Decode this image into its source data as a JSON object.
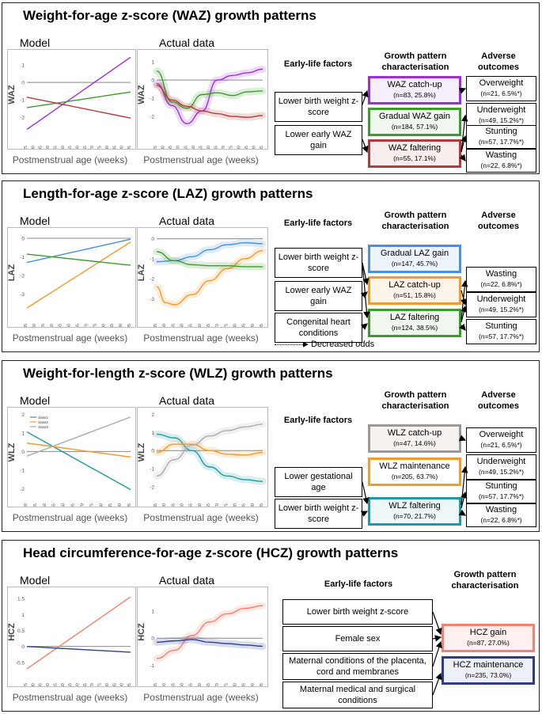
{
  "colors": {
    "purple": "#9b30d9",
    "green": "#3f9a2e",
    "red": "#b33a3a",
    "blue": "#4a8fe0",
    "orange": "#f39a2a",
    "teal": "#1f9aa0",
    "grey": "#999999",
    "navy": "#2c3d8c",
    "salmon": "#f0826e"
  },
  "common": {
    "model": "Model",
    "actual": "Actual data",
    "xlabel": "Postmenstrual age (weeks)",
    "h_early": "Early-life factors",
    "h_growth": "Growth pattern characterisation",
    "h_adverse": "Adverse outcomes",
    "decreased": "Decreased odds"
  },
  "waz": {
    "title": "Weight-for-age z-score (WAZ) growth patterns",
    "ylabel": "WAZ",
    "factors": [
      "Lower birth weight z-score",
      "Lower early WAZ gain"
    ],
    "patterns": [
      {
        "name": "WAZ catch-up",
        "n": "(n=83, 25.8%)"
      },
      {
        "name": "Gradual WAZ gain",
        "n": "(n=184, 57.1%)"
      },
      {
        "name": "WAZ faltering",
        "n": "(n=55, 17.1%)"
      }
    ],
    "outcomes": [
      {
        "name": "Overweight",
        "n": "(n=21, 6.5%*)"
      },
      {
        "name": "Underweight",
        "n": "(n=49, 15.2%*)"
      },
      {
        "name": "Stunting",
        "n": "(n=57, 17.7%*)"
      },
      {
        "name": "Wasting",
        "n": "(n=22, 6.8%*)"
      }
    ]
  },
  "laz": {
    "title": "Length-for-age z-score (LAZ) growth patterns",
    "ylabel": "LAZ",
    "factors": [
      "Lower birth weight z-score",
      "Lower early WAZ gain",
      "Congenital heart conditions"
    ],
    "patterns": [
      {
        "name": "Gradual LAZ gain",
        "n": "(n=147, 45.7%)"
      },
      {
        "name": "LAZ catch-up",
        "n": "(n=51, 15.8%)"
      },
      {
        "name": "LAZ faltering",
        "n": "(n=124, 38.5%)"
      }
    ],
    "outcomes": [
      {
        "name": "Wasting",
        "n": "(n=22, 6.8%*)"
      },
      {
        "name": "Underweight",
        "n": "(n=49, 15.2%*)"
      },
      {
        "name": "Stunting",
        "n": "(n=57, 17.7%*)"
      }
    ]
  },
  "wlz": {
    "title": "Weight-for-length z-score (WLZ) growth patterns",
    "ylabel": "WLZ",
    "legend": [
      "class1",
      "class2",
      "class3"
    ],
    "factors": [
      "Lower gestational age",
      "Lower birth weight z-score"
    ],
    "patterns": [
      {
        "name": "WLZ catch-up",
        "n": "(n=47, 14.6%)"
      },
      {
        "name": "WLZ maintenance",
        "n": "(n=205, 63.7%)"
      },
      {
        "name": "WLZ faltering",
        "n": "(n=70, 21.7%)"
      }
    ],
    "outcomes": [
      {
        "name": "Overweight",
        "n": "(n=21, 6.5%*)"
      },
      {
        "name": "Underweight",
        "n": "(n=49, 15.2%*)"
      },
      {
        "name": "Stunting",
        "n": "(n=57, 17.7%*)"
      },
      {
        "name": "Wasting",
        "n": "(n=22, 6.8%*)"
      }
    ]
  },
  "hcz": {
    "title": "Head circumference-for-age z-score (HCZ) growth patterns",
    "ylabel": "HCZ",
    "factors": [
      "Lower birth weight z-score",
      "Female sex",
      "Maternal conditions of the placenta, cord and membranes",
      "Maternal medical and surgical conditions"
    ],
    "patterns": [
      {
        "name": "HCZ gain",
        "n": "(n=87, 27.0%)"
      },
      {
        "name": "HCZ maintenance",
        "n": "(n=235, 73.0%)"
      }
    ]
  },
  "chart_data": [
    {
      "id": "waz_model",
      "type": "line",
      "title": "Model",
      "xlabel": "Postmenstrual age (weeks)",
      "ylabel": "WAZ",
      "x": [
        25,
        30,
        35,
        40,
        45,
        50,
        55,
        60,
        65,
        70,
        75,
        80,
        85,
        90,
        95
      ],
      "xlim": [
        25,
        95
      ],
      "ylim": [
        -3,
        1.6
      ],
      "yticks": [
        -2,
        -1,
        0,
        1
      ],
      "series": [
        {
          "name": "WAZ catch-up",
          "color": "#9b30d9",
          "x": [
            25,
            95
          ],
          "y": [
            -2.7,
            1.45
          ]
        },
        {
          "name": "Gradual WAZ gain",
          "color": "#3f9a2e",
          "x": [
            25,
            95
          ],
          "y": [
            -1.45,
            -0.55
          ]
        },
        {
          "name": "WAZ faltering",
          "color": "#b33a3a",
          "x": [
            25,
            95
          ],
          "y": [
            -0.85,
            -2.05
          ]
        }
      ]
    },
    {
      "id": "waz_actual",
      "type": "line",
      "title": "Actual data",
      "xlabel": "Postmenstrual age (weeks)",
      "ylabel": "WAZ",
      "x": [
        25,
        30,
        35,
        40,
        45,
        50,
        55,
        60,
        65,
        70,
        75,
        80,
        85,
        90,
        95
      ],
      "xlim": [
        25,
        95
      ],
      "ylim": [
        -3,
        1.4
      ],
      "yticks": [
        -2,
        -1,
        0,
        1
      ],
      "series": [
        {
          "name": "WAZ catch-up",
          "color": "#9b30d9",
          "x": [
            25,
            35,
            45,
            55,
            65,
            75,
            85,
            95
          ],
          "y": [
            -0.2,
            -1.4,
            -2.4,
            -1.7,
            0.0,
            0.25,
            0.4,
            0.6
          ]
        },
        {
          "name": "Gradual WAZ gain",
          "color": "#3f9a2e",
          "x": [
            25,
            35,
            45,
            55,
            65,
            75,
            85,
            95
          ],
          "y": [
            0.5,
            -1.2,
            -1.55,
            -0.8,
            -0.7,
            -0.85,
            -0.65,
            -0.6
          ]
        },
        {
          "name": "WAZ faltering",
          "color": "#b33a3a",
          "x": [
            25,
            35,
            45,
            55,
            65,
            75,
            85,
            95
          ],
          "y": [
            -0.3,
            -1.1,
            -1.45,
            -1.7,
            -1.85,
            -2.0,
            -2.05,
            -1.95
          ]
        }
      ]
    },
    {
      "id": "laz_model",
      "type": "line",
      "title": "Model",
      "xlabel": "Postmenstrual age (weeks)",
      "ylabel": "LAZ",
      "x": [
        35,
        40,
        45,
        50,
        55,
        60,
        65,
        70,
        75,
        80,
        85,
        90,
        95
      ],
      "xlim": [
        35,
        95
      ],
      "ylim": [
        -4,
        0.3
      ],
      "yticks": [
        -3,
        -2,
        -1,
        0
      ],
      "series": [
        {
          "name": "Gradual LAZ gain",
          "color": "#4a8fe0",
          "x": [
            35,
            95
          ],
          "y": [
            -1.3,
            -0.05
          ]
        },
        {
          "name": "LAZ catch-up",
          "color": "#f39a2a",
          "x": [
            35,
            95
          ],
          "y": [
            -3.75,
            -0.2
          ]
        },
        {
          "name": "LAZ faltering",
          "color": "#3f9a2e",
          "x": [
            35,
            95
          ],
          "y": [
            -0.85,
            -1.45
          ]
        }
      ]
    },
    {
      "id": "laz_actual",
      "type": "line",
      "title": "Actual data",
      "xlabel": "Postmenstrual age (weeks)",
      "ylabel": "LAZ",
      "x": [
        35,
        40,
        45,
        50,
        55,
        60,
        65,
        70,
        75,
        80,
        85,
        90,
        95
      ],
      "xlim": [
        35,
        95
      ],
      "ylim": [
        -3.7,
        0.3
      ],
      "yticks": [
        -3,
        -2,
        -1,
        0
      ],
      "series": [
        {
          "name": "Gradual LAZ gain",
          "color": "#4a8fe0",
          "x": [
            35,
            45,
            55,
            65,
            75,
            85,
            95
          ],
          "y": [
            -1.15,
            -1.1,
            -0.9,
            -0.55,
            -0.3,
            -0.2,
            -0.25
          ]
        },
        {
          "name": "LAZ catch-up",
          "color": "#f39a2a",
          "x": [
            35,
            40,
            45,
            55,
            65,
            75,
            85,
            95
          ],
          "y": [
            -2.4,
            -3.2,
            -3.3,
            -2.8,
            -2.1,
            -1.5,
            -1.0,
            -0.6
          ]
        },
        {
          "name": "LAZ faltering",
          "color": "#3f9a2e",
          "x": [
            35,
            45,
            55,
            65,
            75,
            85,
            95
          ],
          "y": [
            -0.65,
            -1.1,
            -1.3,
            -1.35,
            -1.35,
            -1.4,
            -1.4
          ]
        }
      ]
    },
    {
      "id": "wlz_model",
      "type": "line",
      "title": "Model",
      "xlabel": "Postmenstrual age (weeks)",
      "ylabel": "WLZ",
      "x": [
        40,
        45,
        50,
        55,
        60,
        65,
        70,
        75,
        80,
        85,
        90,
        95
      ],
      "xlim": [
        40,
        95
      ],
      "ylim": [
        -2.2,
        2.1
      ],
      "yticks": [
        -2,
        -1,
        0,
        1,
        2
      ],
      "legend": [
        "class1",
        "class2",
        "class3"
      ],
      "series": [
        {
          "name": "class1",
          "color": "#1f9aa0",
          "x": [
            40,
            95
          ],
          "y": [
            1.05,
            -2.05
          ]
        },
        {
          "name": "class2",
          "color": "#f39a2a",
          "x": [
            40,
            95
          ],
          "y": [
            0.45,
            -0.3
          ]
        },
        {
          "name": "class3",
          "color": "#aaaaaa",
          "x": [
            40,
            95
          ],
          "y": [
            -0.25,
            1.85
          ]
        }
      ]
    },
    {
      "id": "wlz_actual",
      "type": "line",
      "title": "Actual data",
      "xlabel": "Postmenstrual age (weeks)",
      "ylabel": "WLZ",
      "x": [
        35,
        40,
        45,
        50,
        55,
        60,
        65,
        70,
        75,
        80,
        85,
        90,
        95
      ],
      "xlim": [
        35,
        95
      ],
      "ylim": [
        -2.3,
        2.1
      ],
      "yticks": [
        -2,
        -1,
        0,
        1,
        2
      ],
      "series": [
        {
          "name": "WLZ faltering",
          "color": "#1f9aa0",
          "x": [
            35,
            45,
            55,
            65,
            75,
            85,
            95
          ],
          "y": [
            0.9,
            0.7,
            0.0,
            -0.9,
            -1.4,
            -1.6,
            -1.7
          ]
        },
        {
          "name": "WLZ maintenance",
          "color": "#f39a2a",
          "x": [
            35,
            45,
            55,
            65,
            75,
            85,
            95
          ],
          "y": [
            -0.1,
            0.35,
            0.35,
            0.0,
            -0.2,
            -0.25,
            -0.1
          ]
        },
        {
          "name": "WLZ catch-up",
          "color": "#aaaaaa",
          "x": [
            35,
            45,
            55,
            65,
            75,
            85,
            95
          ],
          "y": [
            -1.4,
            -0.5,
            0.3,
            0.8,
            1.1,
            1.3,
            1.45
          ]
        }
      ]
    },
    {
      "id": "hcz_model",
      "type": "line",
      "title": "Model",
      "xlabel": "Postmenstrual age (weeks)",
      "ylabel": "HCZ",
      "x": [
        25,
        30,
        35,
        40,
        45,
        50,
        55,
        60,
        65,
        70,
        75,
        80,
        85,
        90,
        95
      ],
      "xlim": [
        25,
        95
      ],
      "ylim": [
        -0.8,
        1.7
      ],
      "yticks": [
        -0.5,
        0,
        0.5,
        1,
        1.5
      ],
      "series": [
        {
          "name": "HCZ gain",
          "color": "#f0826e",
          "x": [
            25,
            95
          ],
          "y": [
            -0.7,
            1.55
          ]
        },
        {
          "name": "HCZ maintenance",
          "color": "#2c3d8c",
          "x": [
            25,
            95
          ],
          "y": [
            0.0,
            -0.18
          ]
        }
      ]
    },
    {
      "id": "hcz_actual",
      "type": "line",
      "title": "Actual data",
      "xlabel": "Postmenstrual age (weeks)",
      "ylabel": "HCZ",
      "x": [
        35,
        40,
        45,
        50,
        55,
        60,
        65,
        70,
        75,
        80,
        85,
        90,
        95
      ],
      "xlim": [
        35,
        95
      ],
      "ylim": [
        -1.25,
        1.7
      ],
      "yticks": [
        -1,
        0,
        1
      ],
      "series": [
        {
          "name": "HCZ gain",
          "color": "#f0826e",
          "x": [
            35,
            45,
            55,
            65,
            75,
            85,
            95
          ],
          "y": [
            -0.75,
            -0.45,
            0.1,
            0.6,
            0.9,
            1.1,
            1.2
          ]
        },
        {
          "name": "HCZ maintenance",
          "color": "#2c3d8c",
          "x": [
            35,
            45,
            55,
            65,
            75,
            85,
            95
          ],
          "y": [
            -0.15,
            -0.1,
            -0.05,
            -0.15,
            -0.2,
            -0.25,
            -0.3
          ]
        }
      ]
    }
  ]
}
